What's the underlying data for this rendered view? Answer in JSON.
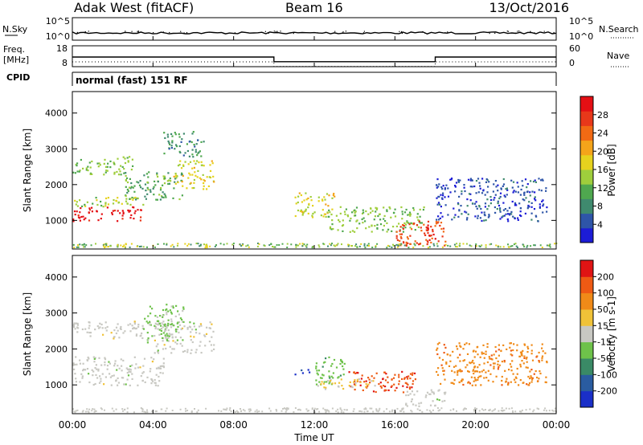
{
  "header": {
    "station": "Adak West (fitACF)",
    "beam": "Beam 16",
    "date": "13/Oct/2016"
  },
  "noise_panel": {
    "left_label": "N.Sky",
    "right_label": "N.Search",
    "left_ticks": [
      "10^5",
      "10^0"
    ],
    "right_ticks": [
      "10^5",
      "10^0"
    ]
  },
  "freq_panel": {
    "left_label_top": "Freq.",
    "left_label_bottom": "[MHz]",
    "right_label": "Nave",
    "left_ticks": [
      "18",
      "8"
    ],
    "right_ticks": [
      "60",
      "0"
    ],
    "freq_segments": [
      {
        "from": "00:00",
        "to": "10:00",
        "value": 12.6
      },
      {
        "from": "10:00",
        "to": "18:00",
        "value": 10.4
      },
      {
        "from": "18:00",
        "to": "24:00",
        "value": 12.6
      }
    ]
  },
  "cpid_panel": {
    "label": "CPID",
    "text": "normal (fast) 151 RF"
  },
  "chart_data": [
    {
      "type": "heatmap",
      "panel": "power",
      "xlabel": "Time UT",
      "ylabel": "Slant Range [km]",
      "xlim": [
        "00:00",
        "24:00"
      ],
      "ylim": [
        200,
        4600
      ],
      "x_ticks": [
        "00:00",
        "04:00",
        "08:00",
        "12:00",
        "16:00",
        "20:00",
        "00:00"
      ],
      "y_ticks": [
        1000,
        2000,
        3000,
        4000
      ],
      "colorbar": {
        "label": "Power [dB]",
        "ticks": [
          "4",
          "8",
          "12",
          "16",
          "20",
          "24",
          "28"
        ],
        "range": [
          0,
          30
        ],
        "colors": [
          "#1c1cd6",
          "#2e55a8",
          "#3f8a6e",
          "#4fa84f",
          "#9fce3c",
          "#e6d21e",
          "#f4a41a",
          "#f26a14",
          "#e8381a",
          "#e40f14"
        ]
      },
      "echo_regions": [
        {
          "t_start": 0.0,
          "t_end": 3.5,
          "r_start": 1000,
          "r_end": 1400,
          "value": 28
        },
        {
          "t_start": 0.0,
          "t_end": 3.5,
          "r_start": 1400,
          "r_end": 1700,
          "value": 14
        },
        {
          "t_start": 0.0,
          "t_end": 3.0,
          "r_start": 2300,
          "r_end": 2800,
          "value": 12
        },
        {
          "t_start": 2.5,
          "t_end": 5.5,
          "r_start": 1600,
          "r_end": 2400,
          "value": 10
        },
        {
          "t_start": 5.0,
          "t_end": 7.0,
          "r_start": 1900,
          "r_end": 2700,
          "value": 16
        },
        {
          "t_start": 4.5,
          "t_end": 6.5,
          "r_start": 2800,
          "r_end": 3500,
          "value": 8
        },
        {
          "t_start": 11.0,
          "t_end": 13.0,
          "r_start": 1100,
          "r_end": 1800,
          "value": 16
        },
        {
          "t_start": 12.5,
          "t_end": 17.5,
          "r_start": 700,
          "r_end": 1400,
          "value": 12
        },
        {
          "t_start": 16.0,
          "t_end": 18.5,
          "r_start": 300,
          "r_end": 1000,
          "value": 24
        },
        {
          "t_start": 17.5,
          "t_end": 18.1,
          "r_start": 300,
          "r_end": 900,
          "value": 28
        },
        {
          "t_start": 18.0,
          "t_end": 23.5,
          "r_start": 1000,
          "r_end": 2200,
          "value": 4
        }
      ]
    },
    {
      "type": "heatmap",
      "panel": "velocity",
      "xlabel": "Time UT",
      "ylabel": "Slant Range [km]",
      "xlim": [
        "00:00",
        "24:00"
      ],
      "ylim": [
        200,
        4600
      ],
      "x_ticks": [
        "00:00",
        "04:00",
        "08:00",
        "12:00",
        "16:00",
        "20:00",
        "00:00"
      ],
      "y_ticks": [
        1000,
        2000,
        3000,
        4000
      ],
      "colorbar": {
        "label": "Velocity [m s-1]",
        "ticks": [
          "200",
          "100",
          "50",
          "15",
          "-15",
          "-50",
          "-100",
          "-200"
        ],
        "range": [
          -250,
          250
        ],
        "colors": [
          "#1a2fc8",
          "#2a5ca0",
          "#3a8a66",
          "#6ec24a",
          "#c8c8c2",
          "#f0c238",
          "#f08a18",
          "#ee5a14",
          "#e01414"
        ]
      },
      "echo_regions": [
        {
          "t_start": 0.0,
          "t_end": 4.5,
          "r_start": 1000,
          "r_end": 1800,
          "value": 0
        },
        {
          "t_start": 0.0,
          "t_end": 3.5,
          "r_start": 2300,
          "r_end": 2800,
          "value": 0
        },
        {
          "t_start": 4.0,
          "t_end": 7.0,
          "r_start": 1900,
          "r_end": 2800,
          "value": 0
        },
        {
          "t_start": 3.5,
          "t_end": 5.5,
          "r_start": 2200,
          "r_end": 3300,
          "value": -40
        },
        {
          "t_start": 11.0,
          "t_end": 11.8,
          "r_start": 1300,
          "r_end": 1450,
          "value": -200
        },
        {
          "t_start": 12.0,
          "t_end": 13.5,
          "r_start": 1000,
          "r_end": 1800,
          "value": -60
        },
        {
          "t_start": 13.5,
          "t_end": 17.0,
          "r_start": 800,
          "r_end": 1400,
          "value": 180
        },
        {
          "t_start": 12.0,
          "t_end": 15.0,
          "r_start": 900,
          "r_end": 1200,
          "value": 40
        },
        {
          "t_start": 16.5,
          "t_end": 18.5,
          "r_start": 400,
          "r_end": 900,
          "value": 0
        },
        {
          "t_start": 18.0,
          "t_end": 23.5,
          "r_start": 1000,
          "r_end": 2200,
          "value": 120
        }
      ]
    }
  ]
}
